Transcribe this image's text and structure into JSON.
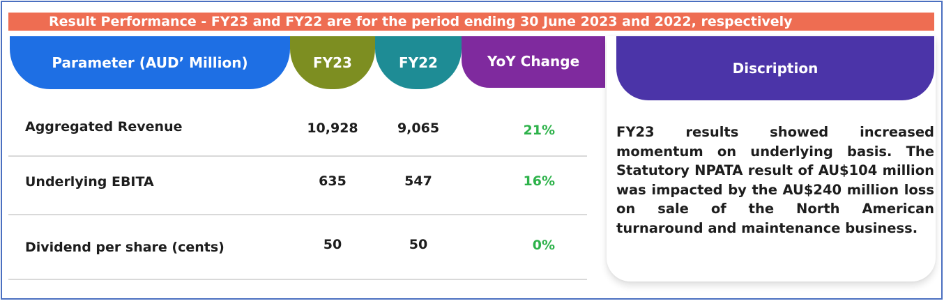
{
  "title": "Result Performance - FY23 and FY22 are for the period ending 30 June 2023 and 2022, respectively",
  "headers": {
    "parameter": "Parameter (AUD’ Million)",
    "fy23": "FY23",
    "fy22": "FY22",
    "yoy": "YoY Change",
    "description": "Discription"
  },
  "rows": [
    {
      "parameter": "Aggregated Revenue",
      "fy23": "10,928",
      "fy22": "9,065",
      "yoy": "21%"
    },
    {
      "parameter": "Underlying EBITA",
      "fy23": "635",
      "fy22": "547",
      "yoy": "16%"
    },
    {
      "parameter": "Dividend per share (cents)",
      "fy23": "50",
      "fy22": "50",
      "yoy": "0%"
    }
  ],
  "description": "FY23 results showed increased momentum on underlying basis. The Statutory NPATA result of AU$104 million was impacted by the AU$240 million loss on sale of the North American turnaround and maintenance business.",
  "colors": {
    "title_bar": "#ee6d52",
    "parameter_header": "#1e6fe4",
    "fy23_header": "#7d8e21",
    "fy22_header": "#1e8c95",
    "yoy_header": "#7f2a9e",
    "description_header": "#4b34a8",
    "positive_change": "#2db24a"
  }
}
